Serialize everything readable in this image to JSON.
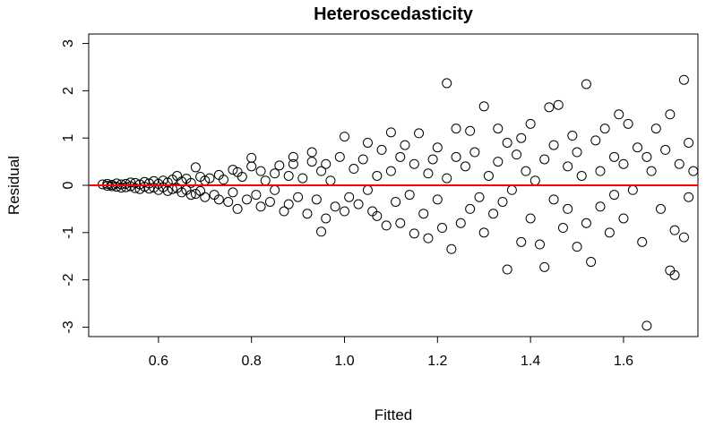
{
  "chart_data": {
    "type": "scatter",
    "title": "Heteroscedasticity",
    "xlabel": "Fitted",
    "ylabel": "Residual",
    "xlim": [
      0.45,
      1.76
    ],
    "ylim": [
      -3.2,
      3.2
    ],
    "xticks": [
      0.6,
      0.8,
      1.0,
      1.2,
      1.4,
      1.6
    ],
    "xtick_labels": [
      "0.6",
      "0.8",
      "1.0",
      "1.2",
      "1.4",
      "1.6"
    ],
    "yticks": [
      -3,
      -2,
      -1,
      0,
      1,
      2,
      3
    ],
    "ytick_labels": [
      "-3",
      "-2",
      "-1",
      "0",
      "1",
      "2",
      "3"
    ],
    "reference_line": {
      "y": 0,
      "color": "#ff0000"
    },
    "point_color": "#000000",
    "grid": false,
    "points": [
      [
        0.48,
        0.02
      ],
      [
        0.49,
        -0.01
      ],
      [
        0.49,
        0.03
      ],
      [
        0.5,
        0.01
      ],
      [
        0.5,
        -0.02
      ],
      [
        0.51,
        0.04
      ],
      [
        0.51,
        -0.03
      ],
      [
        0.52,
        0.02
      ],
      [
        0.52,
        -0.05
      ],
      [
        0.53,
        0.03
      ],
      [
        0.53,
        -0.04
      ],
      [
        0.54,
        0.06
      ],
      [
        0.54,
        -0.02
      ],
      [
        0.55,
        0.05
      ],
      [
        0.55,
        -0.06
      ],
      [
        0.56,
        0.02
      ],
      [
        0.56,
        -0.08
      ],
      [
        0.57,
        0.07
      ],
      [
        0.57,
        -0.03
      ],
      [
        0.58,
        0.04
      ],
      [
        0.58,
        -0.07
      ],
      [
        0.59,
        0.09
      ],
      [
        0.59,
        -0.05
      ],
      [
        0.6,
        0.03
      ],
      [
        0.6,
        -0.1
      ],
      [
        0.61,
        0.1
      ],
      [
        0.61,
        -0.04
      ],
      [
        0.62,
        0.06
      ],
      [
        0.62,
        -0.12
      ],
      [
        0.63,
        0.12
      ],
      [
        0.63,
        -0.08
      ],
      [
        0.64,
        0.2
      ],
      [
        0.64,
        -0.06
      ],
      [
        0.65,
        0.08
      ],
      [
        0.65,
        -0.15
      ],
      [
        0.66,
        0.14
      ],
      [
        0.66,
        -0.1
      ],
      [
        0.67,
        0.05
      ],
      [
        0.67,
        -0.2
      ],
      [
        0.68,
        0.38
      ],
      [
        0.68,
        -0.18
      ],
      [
        0.69,
        0.18
      ],
      [
        0.69,
        -0.12
      ],
      [
        0.7,
        0.1
      ],
      [
        0.7,
        -0.25
      ],
      [
        0.71,
        0.15
      ],
      [
        0.72,
        -0.2
      ],
      [
        0.73,
        0.22
      ],
      [
        0.73,
        -0.3
      ],
      [
        0.74,
        0.12
      ],
      [
        0.75,
        -0.35
      ],
      [
        0.76,
        0.33
      ],
      [
        0.76,
        -0.15
      ],
      [
        0.77,
        0.28
      ],
      [
        0.77,
        -0.5
      ],
      [
        0.78,
        0.18
      ],
      [
        0.79,
        -0.3
      ],
      [
        0.8,
        0.58
      ],
      [
        0.8,
        0.4
      ],
      [
        0.81,
        -0.2
      ],
      [
        0.82,
        0.3
      ],
      [
        0.82,
        -0.45
      ],
      [
        0.83,
        0.1
      ],
      [
        0.84,
        -0.35
      ],
      [
        0.85,
        0.25
      ],
      [
        0.85,
        -0.1
      ],
      [
        0.86,
        0.42
      ],
      [
        0.87,
        -0.55
      ],
      [
        0.88,
        0.2
      ],
      [
        0.88,
        -0.4
      ],
      [
        0.89,
        0.6
      ],
      [
        0.89,
        0.45
      ],
      [
        0.9,
        -0.25
      ],
      [
        0.91,
        0.15
      ],
      [
        0.92,
        -0.6
      ],
      [
        0.93,
        0.7
      ],
      [
        0.93,
        0.5
      ],
      [
        0.94,
        -0.3
      ],
      [
        0.95,
        0.3
      ],
      [
        0.95,
        -0.98
      ],
      [
        0.96,
        0.45
      ],
      [
        0.96,
        -0.7
      ],
      [
        0.97,
        0.1
      ],
      [
        0.98,
        -0.45
      ],
      [
        0.99,
        0.6
      ],
      [
        1.0,
        1.03
      ],
      [
        1.0,
        -0.55
      ],
      [
        1.01,
        -0.25
      ],
      [
        1.02,
        0.35
      ],
      [
        1.03,
        -0.4
      ],
      [
        1.04,
        0.55
      ],
      [
        1.05,
        -0.1
      ],
      [
        1.05,
        0.9
      ],
      [
        1.06,
        -0.55
      ],
      [
        1.07,
        0.2
      ],
      [
        1.07,
        -0.65
      ],
      [
        1.08,
        0.75
      ],
      [
        1.09,
        -0.85
      ],
      [
        1.1,
        1.12
      ],
      [
        1.1,
        0.3
      ],
      [
        1.11,
        -0.35
      ],
      [
        1.12,
        0.6
      ],
      [
        1.12,
        -0.8
      ],
      [
        1.13,
        0.85
      ],
      [
        1.14,
        -0.2
      ],
      [
        1.15,
        0.45
      ],
      [
        1.15,
        -1.02
      ],
      [
        1.16,
        1.1
      ],
      [
        1.17,
        -0.6
      ],
      [
        1.18,
        0.25
      ],
      [
        1.18,
        -1.12
      ],
      [
        1.19,
        0.55
      ],
      [
        1.2,
        -0.3
      ],
      [
        1.2,
        0.8
      ],
      [
        1.21,
        -0.9
      ],
      [
        1.22,
        2.16
      ],
      [
        1.22,
        0.15
      ],
      [
        1.23,
        -1.35
      ],
      [
        1.24,
        0.6
      ],
      [
        1.24,
        1.2
      ],
      [
        1.25,
        -0.8
      ],
      [
        1.26,
        0.4
      ],
      [
        1.27,
        -0.5
      ],
      [
        1.27,
        1.15
      ],
      [
        1.28,
        0.7
      ],
      [
        1.29,
        -0.25
      ],
      [
        1.3,
        1.67
      ],
      [
        1.3,
        -1.0
      ],
      [
        1.31,
        0.2
      ],
      [
        1.32,
        -0.6
      ],
      [
        1.33,
        1.2
      ],
      [
        1.33,
        0.5
      ],
      [
        1.34,
        -0.35
      ],
      [
        1.35,
        -1.78
      ],
      [
        1.35,
        0.9
      ],
      [
        1.36,
        -0.1
      ],
      [
        1.37,
        0.65
      ],
      [
        1.38,
        -1.2
      ],
      [
        1.38,
        1.0
      ],
      [
        1.39,
        0.3
      ],
      [
        1.4,
        -0.7
      ],
      [
        1.4,
        1.3
      ],
      [
        1.41,
        0.1
      ],
      [
        1.42,
        -1.25
      ],
      [
        1.43,
        0.55
      ],
      [
        1.43,
        -1.73
      ],
      [
        1.44,
        1.65
      ],
      [
        1.45,
        -0.3
      ],
      [
        1.45,
        0.85
      ],
      [
        1.46,
        1.7
      ],
      [
        1.47,
        -0.9
      ],
      [
        1.48,
        0.4
      ],
      [
        1.48,
        -0.5
      ],
      [
        1.49,
        1.05
      ],
      [
        1.5,
        -1.3
      ],
      [
        1.5,
        0.7
      ],
      [
        1.51,
        0.2
      ],
      [
        1.52,
        2.14
      ],
      [
        1.52,
        -0.8
      ],
      [
        1.53,
        -1.62
      ],
      [
        1.54,
        0.95
      ],
      [
        1.55,
        -0.45
      ],
      [
        1.55,
        0.3
      ],
      [
        1.56,
        1.2
      ],
      [
        1.57,
        -1.0
      ],
      [
        1.58,
        0.6
      ],
      [
        1.58,
        -0.2
      ],
      [
        1.59,
        1.5
      ],
      [
        1.6,
        -0.7
      ],
      [
        1.6,
        0.45
      ],
      [
        1.61,
        1.3
      ],
      [
        1.62,
        -0.1
      ],
      [
        1.63,
        0.8
      ],
      [
        1.64,
        -1.2
      ],
      [
        1.65,
        -2.97
      ],
      [
        1.65,
        0.6
      ],
      [
        1.66,
        0.3
      ],
      [
        1.67,
        1.2
      ],
      [
        1.68,
        -0.5
      ],
      [
        1.69,
        0.75
      ],
      [
        1.7,
        1.5
      ],
      [
        1.7,
        -1.8
      ],
      [
        1.71,
        -1.9
      ],
      [
        1.71,
        -0.95
      ],
      [
        1.72,
        0.45
      ],
      [
        1.73,
        2.23
      ],
      [
        1.73,
        -1.1
      ],
      [
        1.74,
        0.9
      ],
      [
        1.74,
        -0.25
      ],
      [
        1.75,
        0.3
      ]
    ]
  }
}
